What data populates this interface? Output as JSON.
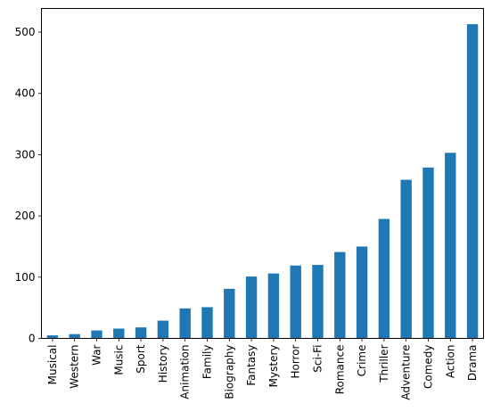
{
  "chart_data": {
    "type": "bar",
    "categories": [
      "Musical",
      "Western",
      "War",
      "Music",
      "Sport",
      "History",
      "Animation",
      "Family",
      "Biography",
      "Fantasy",
      "Mystery",
      "Horror",
      "Sci-Fi",
      "Romance",
      "Crime",
      "Thriller",
      "Adventure",
      "Comedy",
      "Action",
      "Drama"
    ],
    "values": [
      5,
      7,
      13,
      16,
      18,
      29,
      49,
      51,
      81,
      101,
      106,
      119,
      120,
      141,
      150,
      195,
      259,
      279,
      303,
      513
    ],
    "title": "",
    "xlabel": "",
    "ylabel": "",
    "ylim": [
      0,
      538.65
    ],
    "yticks": [
      0,
      100,
      200,
      300,
      400,
      500
    ],
    "grid": false,
    "legend": false,
    "bar_color": "#1f77b4"
  }
}
